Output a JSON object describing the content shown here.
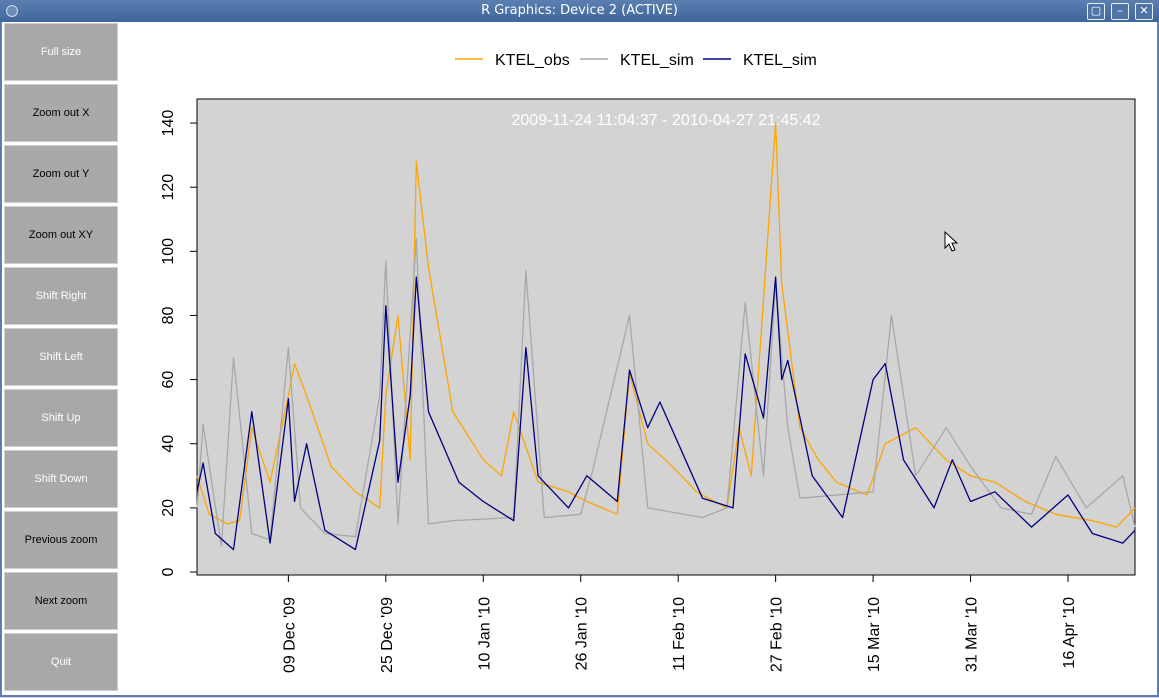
{
  "window": {
    "title": "R Graphics: Device 2 (ACTIVE)"
  },
  "sidebar": {
    "buttons": [
      {
        "label": "Full size",
        "enabled": false
      },
      {
        "label": "Zoom out X",
        "enabled": true
      },
      {
        "label": "Zoom out Y",
        "enabled": true
      },
      {
        "label": "Zoom out XY",
        "enabled": true
      },
      {
        "label": "Shift Right",
        "enabled": false
      },
      {
        "label": "Shift Left",
        "enabled": false
      },
      {
        "label": "Shift Up",
        "enabled": false
      },
      {
        "label": "Shift Down",
        "enabled": false
      },
      {
        "label": "Previous zoom",
        "enabled": true
      },
      {
        "label": "Next zoom",
        "enabled": true
      },
      {
        "label": "Quit",
        "enabled": false
      }
    ]
  },
  "chart_data": {
    "type": "line",
    "title": "2009-11-24 11:04:37 - 2010-04-27 21:45:42",
    "xlim": [
      "2009-11-24",
      "2010-04-27"
    ],
    "ylim": [
      0,
      150
    ],
    "yticks": [
      0,
      20,
      40,
      60,
      80,
      100,
      120,
      140
    ],
    "xticks": [
      "09 Dec '09",
      "25 Dec '09",
      "10 Jan '10",
      "26 Jan '10",
      "11 Feb '10",
      "27 Feb '10",
      "15 Mar '10",
      "31 Mar '10",
      "16 Apr '10"
    ],
    "xtick_dates": [
      "2009-12-09",
      "2009-12-25",
      "2010-01-10",
      "2010-01-26",
      "2010-02-11",
      "2010-02-27",
      "2010-03-15",
      "2010-03-31",
      "2010-04-16"
    ],
    "legend_position": "top",
    "grid": false,
    "series": [
      {
        "name": "KTEL_obs",
        "color": "#ffa500",
        "dates": [
          "2009-11-24",
          "2009-11-26",
          "2009-11-29",
          "2009-12-01",
          "2009-12-03",
          "2009-12-06",
          "2009-12-09",
          "2009-12-10",
          "2009-12-12",
          "2009-12-16",
          "2009-12-20",
          "2009-12-24",
          "2009-12-25",
          "2009-12-27",
          "2009-12-29",
          "2009-12-30",
          "2010-01-01",
          "2010-01-05",
          "2010-01-10",
          "2010-01-13",
          "2010-01-15",
          "2010-01-19",
          "2010-01-24",
          "2010-01-27",
          "2010-02-01",
          "2010-02-03",
          "2010-02-06",
          "2010-02-10",
          "2010-02-14",
          "2010-02-19",
          "2010-02-21",
          "2010-02-23",
          "2010-02-25",
          "2010-02-27",
          "2010-02-28",
          "2010-03-01",
          "2010-03-03",
          "2010-03-06",
          "2010-03-09",
          "2010-03-14",
          "2010-03-17",
          "2010-03-22",
          "2010-03-27",
          "2010-03-31",
          "2010-04-04",
          "2010-04-09",
          "2010-04-14",
          "2010-04-20",
          "2010-04-24",
          "2010-04-27"
        ],
        "values": [
          30,
          18,
          15,
          16,
          45,
          28,
          55,
          65,
          55,
          33,
          25,
          20,
          55,
          80,
          35,
          128,
          95,
          50,
          35,
          30,
          50,
          28,
          25,
          22,
          18,
          62,
          40,
          33,
          25,
          20,
          45,
          30,
          85,
          140,
          90,
          75,
          45,
          35,
          28,
          24,
          40,
          45,
          35,
          30,
          28,
          22,
          18,
          16,
          14,
          20
        ]
      },
      {
        "name": "KTEL_sim",
        "color": "#a8a8a8",
        "dates": [
          "2009-11-24",
          "2009-11-25",
          "2009-11-28",
          "2009-11-30",
          "2009-12-03",
          "2009-12-06",
          "2009-12-09",
          "2009-12-11",
          "2009-12-15",
          "2009-12-20",
          "2009-12-24",
          "2009-12-25",
          "2009-12-27",
          "2009-12-30",
          "2010-01-01",
          "2010-01-05",
          "2010-01-15",
          "2010-01-17",
          "2010-01-20",
          "2010-01-26",
          "2010-01-28",
          "2010-02-03",
          "2010-02-06",
          "2010-02-15",
          "2010-02-19",
          "2010-02-22",
          "2010-02-25",
          "2010-02-27",
          "2010-03-01",
          "2010-03-03",
          "2010-03-15",
          "2010-03-18",
          "2010-03-22",
          "2010-03-27",
          "2010-03-31",
          "2010-04-05",
          "2010-04-10",
          "2010-04-14",
          "2010-04-19",
          "2010-04-25",
          "2010-04-27"
        ],
        "values": [
          20,
          46,
          8,
          67,
          12,
          10,
          70,
          20,
          12,
          11,
          55,
          97,
          15,
          104,
          15,
          16,
          17,
          94,
          17,
          18,
          32,
          80,
          20,
          17,
          20,
          84,
          30,
          90,
          45,
          23,
          25,
          80,
          30,
          45,
          33,
          20,
          18,
          36,
          20,
          30,
          14
        ]
      },
      {
        "name": "KTEL_sim",
        "color": "#000080",
        "dates": [
          "2009-11-24",
          "2009-11-25",
          "2009-11-27",
          "2009-11-30",
          "2009-12-03",
          "2009-12-06",
          "2009-12-09",
          "2009-12-10",
          "2009-12-12",
          "2009-12-15",
          "2009-12-20",
          "2009-12-24",
          "2009-12-25",
          "2009-12-27",
          "2009-12-29",
          "2009-12-30",
          "2010-01-01",
          "2010-01-06",
          "2010-01-10",
          "2010-01-15",
          "2010-01-17",
          "2010-01-19",
          "2010-01-24",
          "2010-01-27",
          "2010-02-01",
          "2010-02-03",
          "2010-02-06",
          "2010-02-08",
          "2010-02-15",
          "2010-02-20",
          "2010-02-22",
          "2010-02-25",
          "2010-02-27",
          "2010-02-28",
          "2010-03-01",
          "2010-03-05",
          "2010-03-10",
          "2010-03-15",
          "2010-03-17",
          "2010-03-20",
          "2010-03-25",
          "2010-03-28",
          "2010-03-31",
          "2010-04-04",
          "2010-04-10",
          "2010-04-16",
          "2010-04-20",
          "2010-04-25",
          "2010-04-27"
        ],
        "values": [
          25,
          34,
          12,
          7,
          50,
          9,
          54,
          22,
          40,
          13,
          7,
          41,
          83,
          28,
          55,
          92,
          50,
          28,
          22,
          16,
          70,
          30,
          20,
          30,
          22,
          63,
          45,
          53,
          23,
          20,
          68,
          48,
          92,
          60,
          66,
          30,
          17,
          60,
          65,
          35,
          20,
          35,
          22,
          25,
          14,
          24,
          12,
          9,
          13
        ]
      }
    ]
  }
}
